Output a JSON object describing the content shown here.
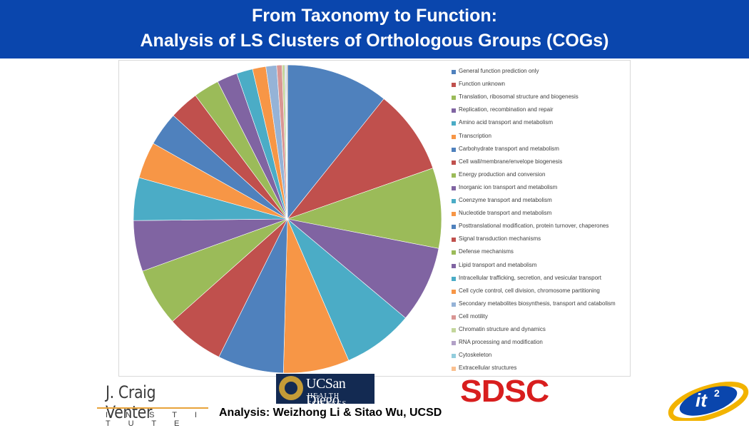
{
  "slide": {
    "title_line1": "From Taxonomy to Function:",
    "title_line2": "Analysis of LS Clusters of Orthologous Groups (COGs)",
    "credit": "Analysis: Weizhong Li & Sitao Wu, UCSD",
    "logos": {
      "jcvi_name": "J. Craig Venter",
      "jcvi_sub": "I N S T I T U T E",
      "ucsd_line1": "UCSan Diego",
      "ucsd_line2": "HEALTH SCIENCES",
      "sdsc": "SDSC",
      "it2": "it2"
    },
    "colors": {
      "title_bar": "#0a46ad",
      "title_text": "#ffffff"
    }
  },
  "chart_data": {
    "type": "pie",
    "title": "",
    "legend_position": "right",
    "start_angle": "12 o'clock, clockwise",
    "categories": [
      "General function prediction only",
      "Function unknown",
      "Translation, ribosomal structure and biogenesis",
      "Replication, recombination and repair",
      "Amino acid transport and metabolism",
      "Transcription",
      "Carbohydrate transport and metabolism",
      "Cell wall/membrane/envelope biogenesis",
      "Energy production and conversion",
      "Inorganic ion transport and metabolism",
      "Coenzyme transport and metabolism",
      "Nucleotide transport and metabolism",
      "Posttranslational modification, protein turnover, chaperones",
      "Signal transduction mechanisms",
      "Defense mechanisms",
      "Lipid transport and metabolism",
      "Intracellular trafficking, secretion, and vesicular transport",
      "Cell cycle control, cell division, chromosome partitioning",
      "Secondary metabolites biosynthesis, transport and catabolism",
      "Cell motility",
      "Chromatin structure and dynamics",
      "RNA processing and modification",
      "Cytoskeleton",
      "Extracellular structures"
    ],
    "values": [
      11.5,
      9.5,
      9.0,
      8.6,
      7.9,
      7.4,
      7.4,
      6.5,
      6.5,
      5.7,
      4.8,
      4.1,
      3.8,
      3.3,
      2.9,
      2.3,
      1.8,
      1.5,
      1.2,
      0.6,
      0.3,
      0.1,
      0.1,
      0.1
    ],
    "colors": [
      "#4f81bd",
      "#c0504d",
      "#9bbb59",
      "#8064a2",
      "#4bacc6",
      "#f79646",
      "#4f81bd",
      "#c0504d",
      "#9bbb59",
      "#8064a2",
      "#4bacc6",
      "#f79646",
      "#4f81bd",
      "#c0504d",
      "#9bbb59",
      "#8064a2",
      "#4bacc6",
      "#f79646",
      "#95b3d7",
      "#d99694",
      "#c3d69b",
      "#b2a1c7",
      "#93cddd",
      "#fac08f"
    ],
    "label_color": "#404040",
    "border_color": "#d9d9d9"
  }
}
